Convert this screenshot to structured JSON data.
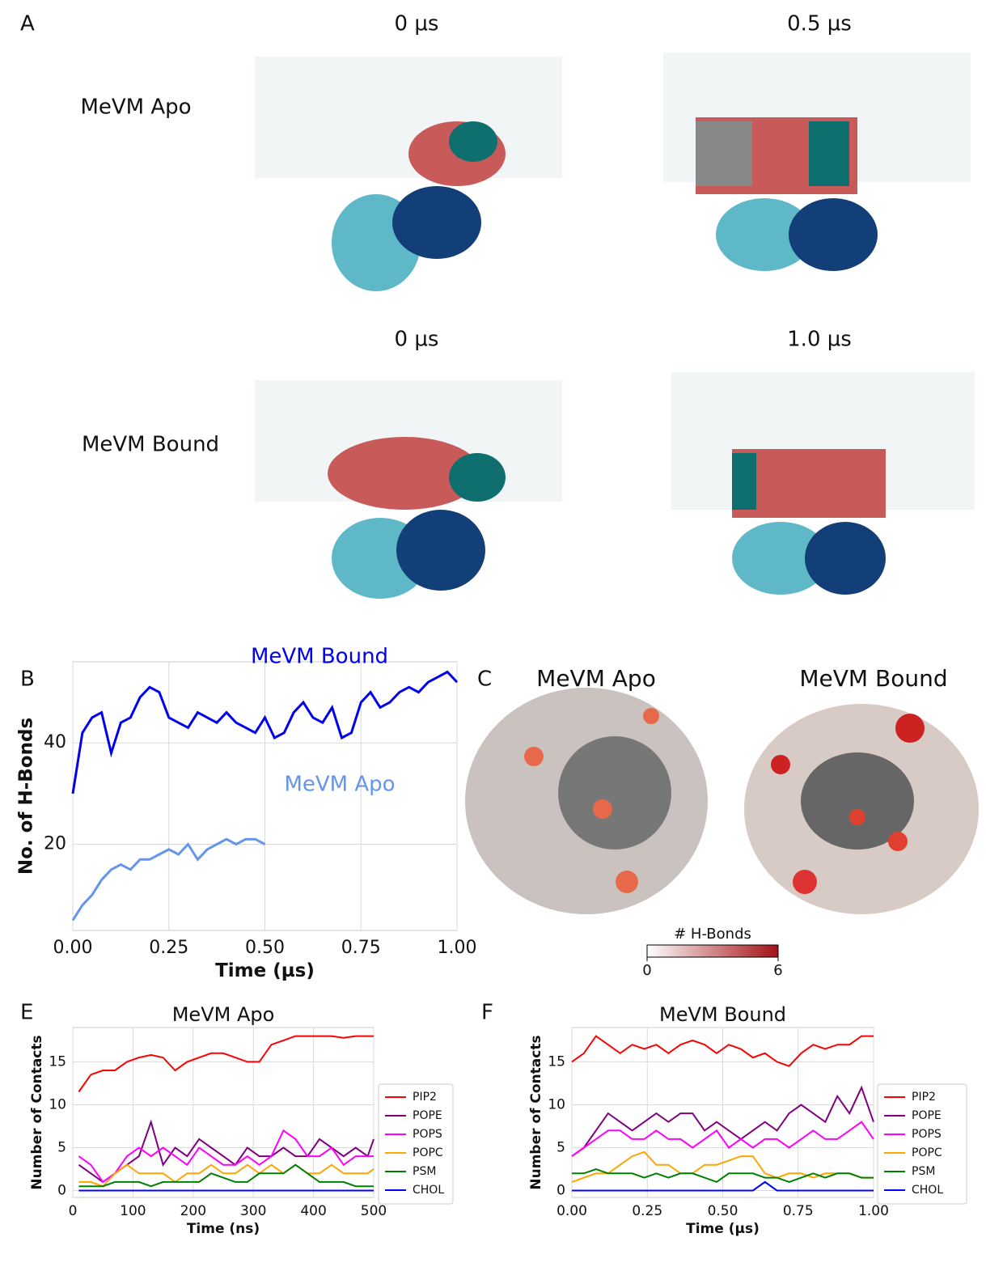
{
  "panel_labels": [
    "A",
    "B",
    "C",
    "E",
    "F"
  ],
  "panel_a": {
    "times": [
      "0 µs",
      "0.5 µs",
      "0 µs",
      "1.0 µs"
    ],
    "rows": [
      "MeVM Apo",
      "MeVM Bound"
    ]
  },
  "panel_c": {
    "titles": [
      "MeVM Apo",
      "MeVM Bound"
    ],
    "colorbar": {
      "label": "# H-Bonds",
      "lim": [
        0,
        6
      ],
      "ticks": [
        0,
        6
      ],
      "colors": [
        "#ffffff",
        "#a50f15"
      ]
    }
  },
  "chart_data": [
    {
      "type": "line",
      "xlabel": "Time (µs)",
      "ylabel": "No. of H-Bonds",
      "grid": true,
      "xlim": [
        0,
        1
      ],
      "ylim": [
        3,
        56
      ],
      "xticks": [
        {
          "value": 0,
          "label": "0.00"
        },
        {
          "value": 0.25,
          "label": "0.25"
        },
        {
          "value": 0.5,
          "label": "0.50"
        },
        {
          "value": 0.75,
          "label": "0.75"
        },
        {
          "value": 1,
          "label": "1.00"
        }
      ],
      "yticks": [
        20,
        40
      ],
      "series": [
        {
          "name": "MeVM Bound",
          "color": "#0000ee",
          "x": [
            0,
            0.025,
            0.05,
            0.075,
            0.1,
            0.125,
            0.15,
            0.175,
            0.2,
            0.225,
            0.25,
            0.275,
            0.3,
            0.325,
            0.35,
            0.375,
            0.4,
            0.425,
            0.45,
            0.475,
            0.5,
            0.525,
            0.55,
            0.575,
            0.6,
            0.625,
            0.65,
            0.675,
            0.7,
            0.725,
            0.75,
            0.775,
            0.8,
            0.825,
            0.85,
            0.875,
            0.9,
            0.925,
            0.95,
            0.975,
            1
          ],
          "values": [
            30,
            42,
            45,
            46,
            38,
            44,
            45,
            49,
            51,
            50,
            45,
            44,
            43,
            46,
            45,
            44,
            46,
            44,
            43,
            42,
            45,
            41,
            42,
            46,
            48,
            45,
            44,
            47,
            41,
            42,
            48,
            50,
            47,
            48,
            50,
            51,
            50,
            52,
            53,
            54,
            52
          ]
        },
        {
          "name": "MeVM Apo",
          "color": "#6495ed",
          "x": [
            0,
            0.025,
            0.05,
            0.075,
            0.1,
            0.125,
            0.15,
            0.175,
            0.2,
            0.225,
            0.25,
            0.275,
            0.3,
            0.325,
            0.35,
            0.375,
            0.4,
            0.425,
            0.45,
            0.475,
            0.5
          ],
          "values": [
            5,
            8,
            10,
            13,
            15,
            16,
            15,
            17,
            17,
            18,
            19,
            18,
            20,
            17,
            19,
            20,
            21,
            20,
            21,
            21,
            20
          ]
        }
      ]
    },
    {
      "type": "line",
      "title": "MeVM Apo",
      "xlabel": "Time (ns)",
      "ylabel": "Number of Contacts",
      "grid": true,
      "legend": "right",
      "xlim": [
        0,
        500
      ],
      "ylim": [
        -0.8,
        19
      ],
      "xticks": [
        0,
        100,
        200,
        300,
        400,
        500
      ],
      "yticks": [
        0,
        5,
        10,
        15
      ],
      "x": [
        10,
        30,
        50,
        70,
        90,
        110,
        130,
        150,
        170,
        190,
        210,
        230,
        250,
        270,
        290,
        310,
        330,
        350,
        370,
        390,
        410,
        430,
        450,
        470,
        490,
        500
      ],
      "series": [
        {
          "name": "PIP2",
          "color": "#ff0000",
          "values": [
            11.5,
            13.5,
            14,
            14,
            15,
            15.5,
            15.8,
            15.5,
            14,
            15,
            15.5,
            16,
            16,
            15.5,
            15,
            15,
            17,
            17.5,
            18,
            18,
            18,
            18,
            17.8,
            18,
            18,
            18
          ]
        },
        {
          "name": "POPE",
          "color": "#800080",
          "values": [
            3,
            2,
            1,
            2,
            3,
            4,
            8,
            3,
            5,
            4,
            6,
            5,
            4,
            3,
            5,
            4,
            4,
            5,
            4,
            4,
            6,
            5,
            4,
            5,
            4,
            6
          ]
        },
        {
          "name": "POPS",
          "color": "#ff00ff",
          "values": [
            4,
            3,
            1,
            2,
            4,
            5,
            4,
            5,
            4,
            3,
            5,
            4,
            3,
            3,
            4,
            3,
            4,
            7,
            6,
            4,
            4,
            5,
            3,
            4,
            4,
            4
          ]
        },
        {
          "name": "POPC",
          "color": "#ffa500",
          "values": [
            1,
            1,
            0.5,
            2,
            3,
            2,
            2,
            2,
            1,
            2,
            2,
            3,
            2,
            2,
            3,
            2,
            3,
            2,
            3,
            2,
            2,
            3,
            2,
            2,
            2,
            2.5
          ]
        },
        {
          "name": "PSM",
          "color": "#008000",
          "values": [
            0.5,
            0.5,
            0.5,
            1,
            1,
            1,
            0.5,
            1,
            1,
            1,
            1,
            2,
            1.5,
            1,
            1,
            2,
            2,
            2,
            3,
            2,
            1,
            1,
            1,
            0.5,
            0.5,
            0.5
          ]
        },
        {
          "name": "CHOL",
          "color": "#0000ff",
          "values": [
            0,
            0,
            0,
            0,
            0,
            0,
            0,
            0,
            0,
            0,
            0,
            0,
            0,
            0,
            0,
            0,
            0,
            0,
            0,
            0,
            0,
            0,
            0,
            0,
            0,
            0
          ]
        }
      ]
    },
    {
      "type": "line",
      "title": "MeVM Bound",
      "xlabel": "Time (µs)",
      "ylabel": "Number of Contacts",
      "grid": true,
      "legend": "right",
      "xlim": [
        0,
        1
      ],
      "ylim": [
        -0.8,
        19
      ],
      "xticks": [
        {
          "value": 0,
          "label": "0.00"
        },
        {
          "value": 0.25,
          "label": "0.25"
        },
        {
          "value": 0.5,
          "label": "0.50"
        },
        {
          "value": 0.75,
          "label": "0.75"
        },
        {
          "value": 1,
          "label": "1.00"
        }
      ],
      "yticks": [
        0,
        5,
        10,
        15
      ],
      "x": [
        0,
        0.04,
        0.08,
        0.12,
        0.16,
        0.2,
        0.24,
        0.28,
        0.32,
        0.36,
        0.4,
        0.44,
        0.48,
        0.52,
        0.56,
        0.6,
        0.64,
        0.68,
        0.72,
        0.76,
        0.8,
        0.84,
        0.88,
        0.92,
        0.96,
        1
      ],
      "series": [
        {
          "name": "PIP2",
          "color": "#ff0000",
          "values": [
            15,
            16,
            18,
            17,
            16,
            17,
            16.5,
            17,
            16,
            17,
            17.5,
            17,
            16,
            17,
            16.5,
            15.5,
            16,
            15,
            14.5,
            16,
            17,
            16.5,
            17,
            17,
            18,
            18
          ]
        },
        {
          "name": "POPE",
          "color": "#800080",
          "values": [
            4,
            5,
            7,
            9,
            8,
            7,
            8,
            9,
            8,
            9,
            9,
            7,
            8,
            7,
            6,
            7,
            8,
            7,
            9,
            10,
            9,
            8,
            11,
            9,
            12,
            8
          ]
        },
        {
          "name": "POPS",
          "color": "#ff00ff",
          "values": [
            4,
            5,
            6,
            7,
            7,
            6,
            6,
            7,
            6,
            6,
            5,
            6,
            7,
            5,
            6,
            5,
            6,
            6,
            5,
            6,
            7,
            6,
            6,
            7,
            8,
            6
          ]
        },
        {
          "name": "POPC",
          "color": "#ffa500",
          "values": [
            1,
            1.5,
            2,
            2,
            3,
            4,
            4.5,
            3,
            3,
            2,
            2,
            3,
            3,
            3.5,
            4,
            4,
            2,
            1.5,
            2,
            2,
            1.5,
            2,
            2,
            2,
            1.5,
            1.5
          ]
        },
        {
          "name": "PSM",
          "color": "#008000",
          "values": [
            2,
            2,
            2.5,
            2,
            2,
            2,
            1.5,
            2,
            1.5,
            2,
            2,
            1.5,
            1,
            2,
            2,
            2,
            1.5,
            1.5,
            1,
            1.5,
            2,
            1.5,
            2,
            2,
            1.5,
            1.5
          ]
        },
        {
          "name": "CHOL",
          "color": "#0000ff",
          "values": [
            0,
            0,
            0,
            0,
            0,
            0,
            0,
            0,
            0,
            0,
            0,
            0,
            0,
            0,
            0,
            0,
            1,
            0,
            0,
            0,
            0,
            0,
            0,
            0,
            0,
            0
          ]
        }
      ]
    }
  ]
}
